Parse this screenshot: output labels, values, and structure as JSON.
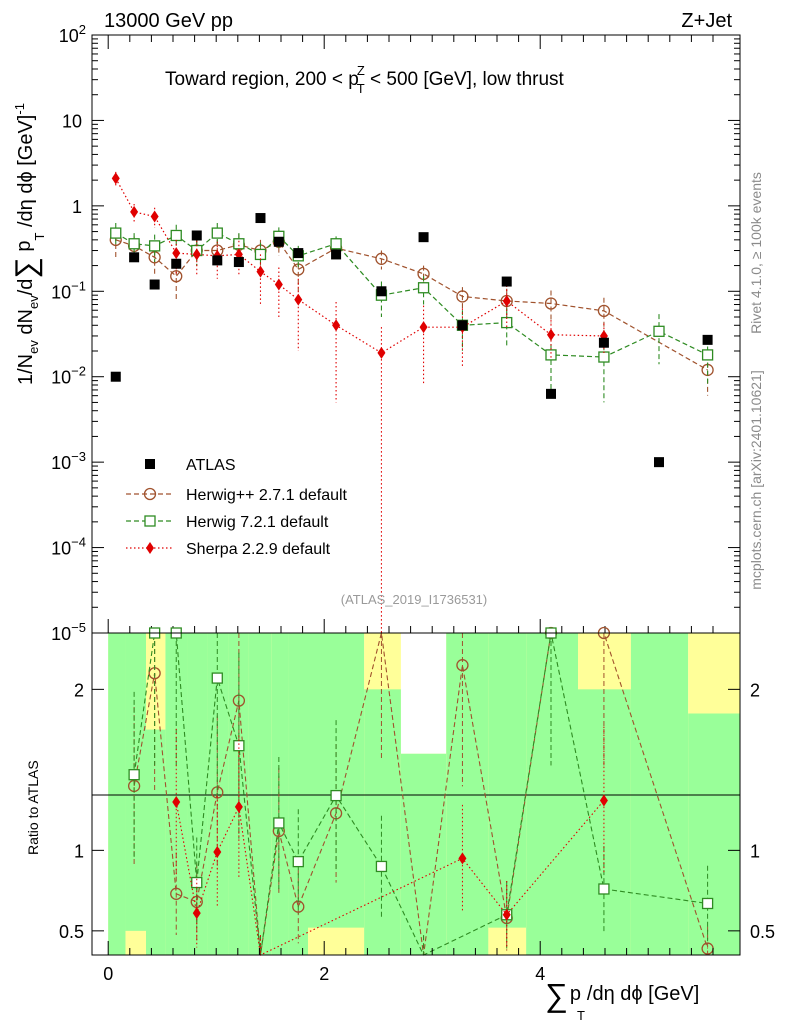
{
  "header": {
    "energy_label": "13000 GeV pp",
    "process_label": "Z+Jet",
    "region_title": "Toward region, 200 < p",
    "region_title_sup": "Z",
    "region_title_sub": "T",
    "region_title_tail": " < 500 [GeV], low thrust",
    "analysis_id": "(ATLAS_2019_I1736531)",
    "rivet_label": "Rivet 4.1.0, ≥ 100k events",
    "mcplots_label": "mcplots.cern.ch [arXiv:2401.10621]"
  },
  "labels": {
    "y_main": "1/N",
    "y_main_sub1": "ev",
    "y_main_mid": " dN",
    "y_main_sub2": "ev",
    "y_main_tail": "/d",
    "y_main_sum": "∑",
    "y_main_pt": " p",
    "y_main_pt_sub": "T",
    "y_main_end": " /dη dϕ  [GeV]",
    "y_main_exp": "-1",
    "y_ratio": "Ratio to ATLAS",
    "x_sum": "∑",
    "x_pt": "p",
    "x_pt_sub": "T",
    "x_tail": "/dη dϕ [GeV]"
  },
  "colors": {
    "atlas": "#000000",
    "herwigpp": "#a0522d",
    "herwig7": "#2e8b22",
    "sherpa": "#e00000",
    "band_inner": "#99ff99",
    "band_outer": "#ffff99"
  },
  "chart_data": [
    {
      "type": "scatter",
      "title": "Toward region, 200 < pT^Z < 500 [GeV], low thrust",
      "xlabel": "∑ pT/dη dϕ [GeV]",
      "ylabel": "1/Nev dNev/d∑ pT /dη dϕ [GeV]^-1",
      "yscale": "log",
      "xlim": [
        -0.15,
        5.85
      ],
      "ylim": [
        1e-05,
        100
      ],
      "x_ticks": [
        0,
        2,
        4
      ],
      "y_ticks": [
        {
          "v": 100,
          "b": "10",
          "e": "2"
        },
        {
          "v": 10,
          "b": "10",
          "e": ""
        },
        {
          "v": 1,
          "b": "1",
          "e": ""
        },
        {
          "v": 0.1,
          "b": "10",
          "e": "−1"
        },
        {
          "v": 0.01,
          "b": "10",
          "e": "−2"
        },
        {
          "v": 0.001,
          "b": "10",
          "e": "−3"
        },
        {
          "v": 0.0001,
          "b": "10",
          "e": "−4"
        },
        {
          "v": 1e-05,
          "b": "10",
          "e": "−5"
        }
      ],
      "legend": "middle-left",
      "series": [
        {
          "name": "ATLAS",
          "marker": "filled-square",
          "x": [
            0.07,
            0.24,
            0.43,
            0.63,
            0.82,
            1.01,
            1.21,
            1.41,
            1.58,
            1.76,
            2.11,
            2.53,
            2.92,
            3.28,
            3.69,
            4.1,
            4.59,
            5.1,
            5.55
          ],
          "y": [
            0.01,
            0.25,
            0.12,
            0.21,
            0.45,
            0.23,
            0.22,
            0.72,
            0.38,
            0.28,
            0.27,
            0.1,
            0.43,
            0.04,
            0.13,
            0.0063,
            0.025,
            0.001,
            0.027
          ]
        },
        {
          "name": "Herwig++ 2.7.1 default",
          "marker": "open-circle",
          "line": "dashed",
          "x": [
            0.07,
            0.24,
            0.43,
            0.63,
            0.82,
            1.01,
            1.21,
            1.41,
            1.58,
            1.76,
            2.11,
            2.53,
            2.92,
            3.28,
            3.69,
            4.1,
            4.59,
            5.55
          ],
          "y": [
            0.4,
            0.34,
            0.25,
            0.15,
            0.3,
            0.3,
            0.35,
            0.3,
            0.38,
            0.18,
            0.32,
            0.24,
            0.16,
            0.087,
            0.077,
            0.072,
            0.059,
            0.012
          ],
          "yerr": [
            0.15,
            0.1,
            0.1,
            0.07,
            0.1,
            0.1,
            0.12,
            0.1,
            0.12,
            0.08,
            0.08,
            0.06,
            0.04,
            0.025,
            0.03,
            0.03,
            0.025,
            0.006
          ]
        },
        {
          "name": "Herwig 7.2.1 default",
          "marker": "open-square",
          "line": "dashed",
          "x": [
            0.07,
            0.24,
            0.43,
            0.63,
            0.82,
            1.01,
            1.21,
            1.41,
            1.58,
            1.76,
            2.11,
            2.53,
            2.92,
            3.28,
            3.69,
            4.1,
            4.59,
            5.1,
            5.55
          ],
          "y": [
            0.48,
            0.36,
            0.34,
            0.45,
            0.3,
            0.48,
            0.36,
            0.27,
            0.44,
            0.26,
            0.36,
            0.09,
            0.11,
            0.04,
            0.043,
            0.018,
            0.017,
            0.034,
            0.018
          ],
          "yerr": [
            0.15,
            0.12,
            0.12,
            0.15,
            0.1,
            0.15,
            0.12,
            0.1,
            0.12,
            0.08,
            0.08,
            0.04,
            0.04,
            0.02,
            0.02,
            0.012,
            0.012,
            0.02,
            0.01
          ]
        },
        {
          "name": "Sherpa 2.2.9 default",
          "marker": "filled-diamond",
          "line": "dotted",
          "x": [
            0.07,
            0.24,
            0.43,
            0.63,
            0.82,
            1.01,
            1.21,
            1.41,
            1.58,
            1.76,
            2.11,
            2.53,
            2.92,
            3.28,
            3.69,
            4.1,
            4.59
          ],
          "y": [
            2.1,
            0.85,
            0.75,
            0.28,
            0.27,
            0.26,
            0.27,
            0.17,
            0.12,
            0.08,
            0.04,
            0.019,
            0.038,
            0.038,
            0.077,
            0.031,
            0.03
          ],
          "yerr": [
            0.4,
            0.2,
            0.2,
            0.12,
            0.12,
            0.12,
            0.12,
            0.1,
            0.07,
            0.06,
            0.035,
            0.019,
            0.03,
            0.025,
            0.04,
            0.015,
            0.012
          ]
        }
      ]
    },
    {
      "type": "scatter",
      "ylabel": "Ratio to ATLAS",
      "ylim": [
        0.35,
        2.35
      ],
      "y_ticks": [
        0.5,
        1,
        2
      ],
      "bin_edges": [
        0,
        0.16,
        0.35,
        0.53,
        0.73,
        0.92,
        1.11,
        1.3,
        1.51,
        1.67,
        1.85,
        2.37,
        2.71,
        3.13,
        3.52,
        3.87,
        4.35,
        4.84,
        5.37,
        5.85
      ],
      "band_outer_top": [
        2.35,
        2.35,
        2.35,
        2.35,
        2.35,
        2.35,
        2.35,
        2.35,
        2.35,
        2.35,
        2.35,
        2.35,
        1.6,
        2.35,
        2.35,
        2.35,
        2.35,
        2.35,
        2.35
      ],
      "band_outer_bot": [
        0.35,
        0.35,
        0.35,
        0.35,
        0.35,
        0.35,
        0.35,
        0.35,
        0.35,
        0.35,
        0.35,
        0.35,
        0.35,
        0.35,
        0.35,
        0.35,
        0.35,
        0.35,
        0.35
      ],
      "band_inner_top": [
        2.35,
        2.35,
        1.75,
        2.35,
        2.35,
        2.35,
        2.35,
        2.35,
        2.35,
        2.35,
        2.35,
        2.0,
        1.6,
        2.35,
        2.35,
        2.35,
        2.0,
        2.35,
        1.85
      ],
      "band_inner_bot": [
        0.35,
        0.5,
        0.35,
        0.35,
        0.35,
        0.35,
        0.35,
        0.35,
        0.35,
        0.35,
        0.52,
        0.35,
        0.35,
        0.35,
        0.52,
        0.35,
        0.35,
        0.35,
        0.35
      ],
      "series": [
        {
          "name": "Herwig++ 2.7.1 default",
          "x": [
            0.24,
            0.43,
            0.63,
            0.82,
            1.01,
            1.21,
            1.41,
            1.58,
            1.76,
            2.11,
            2.53,
            2.92,
            3.28,
            3.69,
            4.1,
            4.59,
            5.55
          ],
          "y": [
            1.4,
            2.1,
            0.73,
            0.68,
            1.36,
            1.93,
            0.35,
            1.12,
            0.65,
            1.23,
            2.4,
            0.35,
            2.15,
            0.58,
            2.35,
            2.35,
            0.39
          ]
        },
        {
          "name": "Herwig 7.2.1 default",
          "x": [
            0.24,
            0.43,
            0.63,
            0.82,
            1.01,
            1.21,
            1.41,
            1.58,
            1.76,
            2.11,
            2.53,
            2.92,
            3.69,
            4.1,
            4.59,
            5.55
          ],
          "y": [
            1.47,
            2.35,
            2.35,
            0.8,
            2.07,
            1.65,
            0.35,
            1.17,
            0.93,
            1.34,
            0.9,
            0.35,
            0.6,
            2.35,
            0.76,
            0.67
          ]
        },
        {
          "name": "Sherpa 2.2.9 default",
          "x": [
            0.63,
            0.82,
            1.01,
            1.21,
            1.41,
            3.28,
            3.69,
            4.59
          ],
          "y": [
            1.3,
            0.61,
            0.99,
            1.27,
            0.35,
            0.95,
            0.6,
            1.31
          ]
        }
      ]
    }
  ]
}
